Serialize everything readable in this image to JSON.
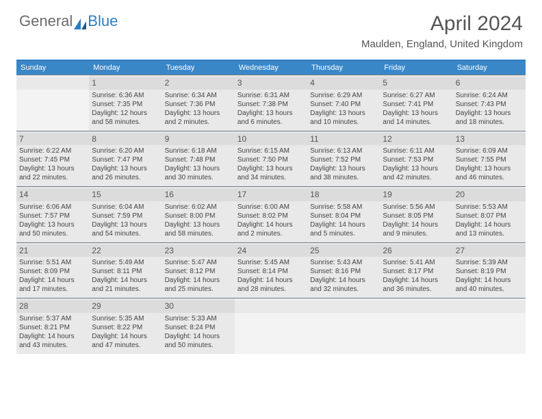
{
  "logo": {
    "text1": "General",
    "text2": "Blue"
  },
  "title": "April 2024",
  "location": "Maulden, England, United Kingdom",
  "colors": {
    "header_bg": "#3a87c8",
    "header_text": "#ffffff",
    "border_top": "#2f7dc0",
    "row_divider": "#6f7a86",
    "cell_bg": "#e9e9e9",
    "empty_bg": "#f3f3f3",
    "daynum_bg": "#dcdcdc"
  },
  "day_headers": [
    "Sunday",
    "Monday",
    "Tuesday",
    "Wednesday",
    "Thursday",
    "Friday",
    "Saturday"
  ],
  "weeks": [
    [
      {
        "num": "",
        "sunrise": "",
        "sunset": "",
        "daylight": ""
      },
      {
        "num": "1",
        "sunrise": "Sunrise: 6:36 AM",
        "sunset": "Sunset: 7:35 PM",
        "daylight": "Daylight: 12 hours and 58 minutes."
      },
      {
        "num": "2",
        "sunrise": "Sunrise: 6:34 AM",
        "sunset": "Sunset: 7:36 PM",
        "daylight": "Daylight: 13 hours and 2 minutes."
      },
      {
        "num": "3",
        "sunrise": "Sunrise: 6:31 AM",
        "sunset": "Sunset: 7:38 PM",
        "daylight": "Daylight: 13 hours and 6 minutes."
      },
      {
        "num": "4",
        "sunrise": "Sunrise: 6:29 AM",
        "sunset": "Sunset: 7:40 PM",
        "daylight": "Daylight: 13 hours and 10 minutes."
      },
      {
        "num": "5",
        "sunrise": "Sunrise: 6:27 AM",
        "sunset": "Sunset: 7:41 PM",
        "daylight": "Daylight: 13 hours and 14 minutes."
      },
      {
        "num": "6",
        "sunrise": "Sunrise: 6:24 AM",
        "sunset": "Sunset: 7:43 PM",
        "daylight": "Daylight: 13 hours and 18 minutes."
      }
    ],
    [
      {
        "num": "7",
        "sunrise": "Sunrise: 6:22 AM",
        "sunset": "Sunset: 7:45 PM",
        "daylight": "Daylight: 13 hours and 22 minutes."
      },
      {
        "num": "8",
        "sunrise": "Sunrise: 6:20 AM",
        "sunset": "Sunset: 7:47 PM",
        "daylight": "Daylight: 13 hours and 26 minutes."
      },
      {
        "num": "9",
        "sunrise": "Sunrise: 6:18 AM",
        "sunset": "Sunset: 7:48 PM",
        "daylight": "Daylight: 13 hours and 30 minutes."
      },
      {
        "num": "10",
        "sunrise": "Sunrise: 6:15 AM",
        "sunset": "Sunset: 7:50 PM",
        "daylight": "Daylight: 13 hours and 34 minutes."
      },
      {
        "num": "11",
        "sunrise": "Sunrise: 6:13 AM",
        "sunset": "Sunset: 7:52 PM",
        "daylight": "Daylight: 13 hours and 38 minutes."
      },
      {
        "num": "12",
        "sunrise": "Sunrise: 6:11 AM",
        "sunset": "Sunset: 7:53 PM",
        "daylight": "Daylight: 13 hours and 42 minutes."
      },
      {
        "num": "13",
        "sunrise": "Sunrise: 6:09 AM",
        "sunset": "Sunset: 7:55 PM",
        "daylight": "Daylight: 13 hours and 46 minutes."
      }
    ],
    [
      {
        "num": "14",
        "sunrise": "Sunrise: 6:06 AM",
        "sunset": "Sunset: 7:57 PM",
        "daylight": "Daylight: 13 hours and 50 minutes."
      },
      {
        "num": "15",
        "sunrise": "Sunrise: 6:04 AM",
        "sunset": "Sunset: 7:59 PM",
        "daylight": "Daylight: 13 hours and 54 minutes."
      },
      {
        "num": "16",
        "sunrise": "Sunrise: 6:02 AM",
        "sunset": "Sunset: 8:00 PM",
        "daylight": "Daylight: 13 hours and 58 minutes."
      },
      {
        "num": "17",
        "sunrise": "Sunrise: 6:00 AM",
        "sunset": "Sunset: 8:02 PM",
        "daylight": "Daylight: 14 hours and 2 minutes."
      },
      {
        "num": "18",
        "sunrise": "Sunrise: 5:58 AM",
        "sunset": "Sunset: 8:04 PM",
        "daylight": "Daylight: 14 hours and 5 minutes."
      },
      {
        "num": "19",
        "sunrise": "Sunrise: 5:56 AM",
        "sunset": "Sunset: 8:05 PM",
        "daylight": "Daylight: 14 hours and 9 minutes."
      },
      {
        "num": "20",
        "sunrise": "Sunrise: 5:53 AM",
        "sunset": "Sunset: 8:07 PM",
        "daylight": "Daylight: 14 hours and 13 minutes."
      }
    ],
    [
      {
        "num": "21",
        "sunrise": "Sunrise: 5:51 AM",
        "sunset": "Sunset: 8:09 PM",
        "daylight": "Daylight: 14 hours and 17 minutes."
      },
      {
        "num": "22",
        "sunrise": "Sunrise: 5:49 AM",
        "sunset": "Sunset: 8:11 PM",
        "daylight": "Daylight: 14 hours and 21 minutes."
      },
      {
        "num": "23",
        "sunrise": "Sunrise: 5:47 AM",
        "sunset": "Sunset: 8:12 PM",
        "daylight": "Daylight: 14 hours and 25 minutes."
      },
      {
        "num": "24",
        "sunrise": "Sunrise: 5:45 AM",
        "sunset": "Sunset: 8:14 PM",
        "daylight": "Daylight: 14 hours and 28 minutes."
      },
      {
        "num": "25",
        "sunrise": "Sunrise: 5:43 AM",
        "sunset": "Sunset: 8:16 PM",
        "daylight": "Daylight: 14 hours and 32 minutes."
      },
      {
        "num": "26",
        "sunrise": "Sunrise: 5:41 AM",
        "sunset": "Sunset: 8:17 PM",
        "daylight": "Daylight: 14 hours and 36 minutes."
      },
      {
        "num": "27",
        "sunrise": "Sunrise: 5:39 AM",
        "sunset": "Sunset: 8:19 PM",
        "daylight": "Daylight: 14 hours and 40 minutes."
      }
    ],
    [
      {
        "num": "28",
        "sunrise": "Sunrise: 5:37 AM",
        "sunset": "Sunset: 8:21 PM",
        "daylight": "Daylight: 14 hours and 43 minutes."
      },
      {
        "num": "29",
        "sunrise": "Sunrise: 5:35 AM",
        "sunset": "Sunset: 8:22 PM",
        "daylight": "Daylight: 14 hours and 47 minutes."
      },
      {
        "num": "30",
        "sunrise": "Sunrise: 5:33 AM",
        "sunset": "Sunset: 8:24 PM",
        "daylight": "Daylight: 14 hours and 50 minutes."
      },
      {
        "num": "",
        "sunrise": "",
        "sunset": "",
        "daylight": ""
      },
      {
        "num": "",
        "sunrise": "",
        "sunset": "",
        "daylight": ""
      },
      {
        "num": "",
        "sunrise": "",
        "sunset": "",
        "daylight": ""
      },
      {
        "num": "",
        "sunrise": "",
        "sunset": "",
        "daylight": ""
      }
    ]
  ]
}
